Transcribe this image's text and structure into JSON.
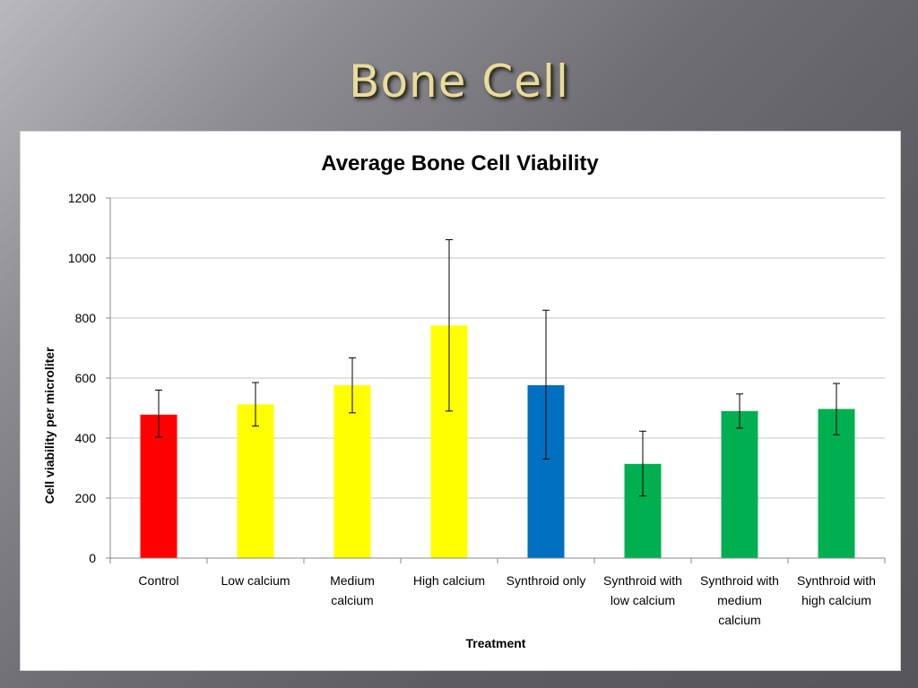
{
  "slide": {
    "title": "Bone Cell"
  },
  "chart_data": {
    "type": "bar",
    "title": "Average Bone Cell Viability",
    "xlabel": "Treatment",
    "ylabel": "Cell viability per microliter",
    "ylim": [
      0,
      1200
    ],
    "yticks": [
      0,
      200,
      400,
      600,
      800,
      1000,
      1200
    ],
    "grid": true,
    "legend": "none",
    "categories": [
      [
        "Control"
      ],
      [
        "Low calcium"
      ],
      [
        "Medium",
        "calcium"
      ],
      [
        "High calcium"
      ],
      [
        "Synthroid only"
      ],
      [
        "Synthroid with",
        "low calcium"
      ],
      [
        "Synthroid with",
        "medium",
        "calcium"
      ],
      [
        "Synthroid with",
        "high calcium"
      ]
    ],
    "values": [
      478,
      512,
      576,
      775,
      576,
      314,
      490,
      497
    ],
    "error_low": [
      403,
      440,
      484,
      490,
      330,
      207,
      433,
      411
    ],
    "error_high": [
      560,
      585,
      667,
      1061,
      826,
      423,
      547,
      582
    ],
    "colors": [
      "#ff0000",
      "#ffff00",
      "#ffff00",
      "#ffff00",
      "#0070c0",
      "#00b050",
      "#00b050",
      "#00b050"
    ]
  }
}
